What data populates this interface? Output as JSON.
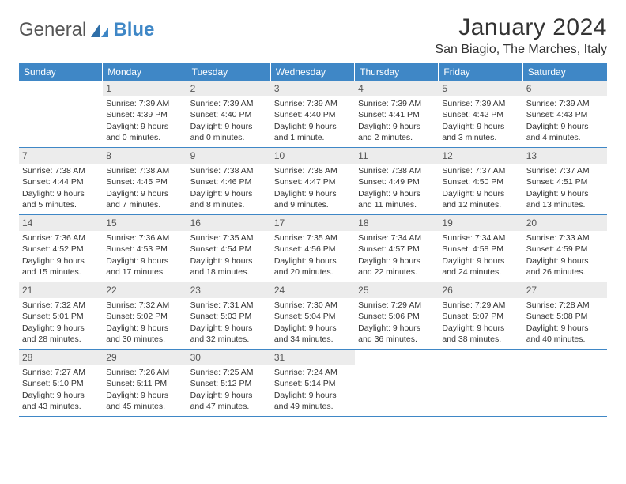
{
  "colors": {
    "accent": "#3f87c6",
    "daynum_bg": "#ececec",
    "text": "#333333",
    "background": "#ffffff"
  },
  "typography": {
    "title_fontsize": 30,
    "location_fontsize": 16,
    "weekday_fontsize": 12,
    "daynum_fontsize": 12,
    "body_fontsize": 10.5
  },
  "logo": {
    "general": "General",
    "blue": "Blue"
  },
  "title": "January 2024",
  "location": "San Biagio, The Marches, Italy",
  "weekdays": [
    "Sunday",
    "Monday",
    "Tuesday",
    "Wednesday",
    "Thursday",
    "Friday",
    "Saturday"
  ],
  "calendar": {
    "type": "calendar-table",
    "columns": 7,
    "rows": 5
  },
  "weeks": [
    [
      {
        "n": "",
        "lines": []
      },
      {
        "n": "1",
        "lines": [
          "Sunrise: 7:39 AM",
          "Sunset: 4:39 PM",
          "Daylight: 9 hours and 0 minutes."
        ]
      },
      {
        "n": "2",
        "lines": [
          "Sunrise: 7:39 AM",
          "Sunset: 4:40 PM",
          "Daylight: 9 hours and 0 minutes."
        ]
      },
      {
        "n": "3",
        "lines": [
          "Sunrise: 7:39 AM",
          "Sunset: 4:40 PM",
          "Daylight: 9 hours and 1 minute."
        ]
      },
      {
        "n": "4",
        "lines": [
          "Sunrise: 7:39 AM",
          "Sunset: 4:41 PM",
          "Daylight: 9 hours and 2 minutes."
        ]
      },
      {
        "n": "5",
        "lines": [
          "Sunrise: 7:39 AM",
          "Sunset: 4:42 PM",
          "Daylight: 9 hours and 3 minutes."
        ]
      },
      {
        "n": "6",
        "lines": [
          "Sunrise: 7:39 AM",
          "Sunset: 4:43 PM",
          "Daylight: 9 hours and 4 minutes."
        ]
      }
    ],
    [
      {
        "n": "7",
        "lines": [
          "Sunrise: 7:38 AM",
          "Sunset: 4:44 PM",
          "Daylight: 9 hours and 5 minutes."
        ]
      },
      {
        "n": "8",
        "lines": [
          "Sunrise: 7:38 AM",
          "Sunset: 4:45 PM",
          "Daylight: 9 hours and 7 minutes."
        ]
      },
      {
        "n": "9",
        "lines": [
          "Sunrise: 7:38 AM",
          "Sunset: 4:46 PM",
          "Daylight: 9 hours and 8 minutes."
        ]
      },
      {
        "n": "10",
        "lines": [
          "Sunrise: 7:38 AM",
          "Sunset: 4:47 PM",
          "Daylight: 9 hours and 9 minutes."
        ]
      },
      {
        "n": "11",
        "lines": [
          "Sunrise: 7:38 AM",
          "Sunset: 4:49 PM",
          "Daylight: 9 hours and 11 minutes."
        ]
      },
      {
        "n": "12",
        "lines": [
          "Sunrise: 7:37 AM",
          "Sunset: 4:50 PM",
          "Daylight: 9 hours and 12 minutes."
        ]
      },
      {
        "n": "13",
        "lines": [
          "Sunrise: 7:37 AM",
          "Sunset: 4:51 PM",
          "Daylight: 9 hours and 13 minutes."
        ]
      }
    ],
    [
      {
        "n": "14",
        "lines": [
          "Sunrise: 7:36 AM",
          "Sunset: 4:52 PM",
          "Daylight: 9 hours and 15 minutes."
        ]
      },
      {
        "n": "15",
        "lines": [
          "Sunrise: 7:36 AM",
          "Sunset: 4:53 PM",
          "Daylight: 9 hours and 17 minutes."
        ]
      },
      {
        "n": "16",
        "lines": [
          "Sunrise: 7:35 AM",
          "Sunset: 4:54 PM",
          "Daylight: 9 hours and 18 minutes."
        ]
      },
      {
        "n": "17",
        "lines": [
          "Sunrise: 7:35 AM",
          "Sunset: 4:56 PM",
          "Daylight: 9 hours and 20 minutes."
        ]
      },
      {
        "n": "18",
        "lines": [
          "Sunrise: 7:34 AM",
          "Sunset: 4:57 PM",
          "Daylight: 9 hours and 22 minutes."
        ]
      },
      {
        "n": "19",
        "lines": [
          "Sunrise: 7:34 AM",
          "Sunset: 4:58 PM",
          "Daylight: 9 hours and 24 minutes."
        ]
      },
      {
        "n": "20",
        "lines": [
          "Sunrise: 7:33 AM",
          "Sunset: 4:59 PM",
          "Daylight: 9 hours and 26 minutes."
        ]
      }
    ],
    [
      {
        "n": "21",
        "lines": [
          "Sunrise: 7:32 AM",
          "Sunset: 5:01 PM",
          "Daylight: 9 hours and 28 minutes."
        ]
      },
      {
        "n": "22",
        "lines": [
          "Sunrise: 7:32 AM",
          "Sunset: 5:02 PM",
          "Daylight: 9 hours and 30 minutes."
        ]
      },
      {
        "n": "23",
        "lines": [
          "Sunrise: 7:31 AM",
          "Sunset: 5:03 PM",
          "Daylight: 9 hours and 32 minutes."
        ]
      },
      {
        "n": "24",
        "lines": [
          "Sunrise: 7:30 AM",
          "Sunset: 5:04 PM",
          "Daylight: 9 hours and 34 minutes."
        ]
      },
      {
        "n": "25",
        "lines": [
          "Sunrise: 7:29 AM",
          "Sunset: 5:06 PM",
          "Daylight: 9 hours and 36 minutes."
        ]
      },
      {
        "n": "26",
        "lines": [
          "Sunrise: 7:29 AM",
          "Sunset: 5:07 PM",
          "Daylight: 9 hours and 38 minutes."
        ]
      },
      {
        "n": "27",
        "lines": [
          "Sunrise: 7:28 AM",
          "Sunset: 5:08 PM",
          "Daylight: 9 hours and 40 minutes."
        ]
      }
    ],
    [
      {
        "n": "28",
        "lines": [
          "Sunrise: 7:27 AM",
          "Sunset: 5:10 PM",
          "Daylight: 9 hours and 43 minutes."
        ]
      },
      {
        "n": "29",
        "lines": [
          "Sunrise: 7:26 AM",
          "Sunset: 5:11 PM",
          "Daylight: 9 hours and 45 minutes."
        ]
      },
      {
        "n": "30",
        "lines": [
          "Sunrise: 7:25 AM",
          "Sunset: 5:12 PM",
          "Daylight: 9 hours and 47 minutes."
        ]
      },
      {
        "n": "31",
        "lines": [
          "Sunrise: 7:24 AM",
          "Sunset: 5:14 PM",
          "Daylight: 9 hours and 49 minutes."
        ]
      },
      {
        "n": "",
        "lines": []
      },
      {
        "n": "",
        "lines": []
      },
      {
        "n": "",
        "lines": []
      }
    ]
  ]
}
